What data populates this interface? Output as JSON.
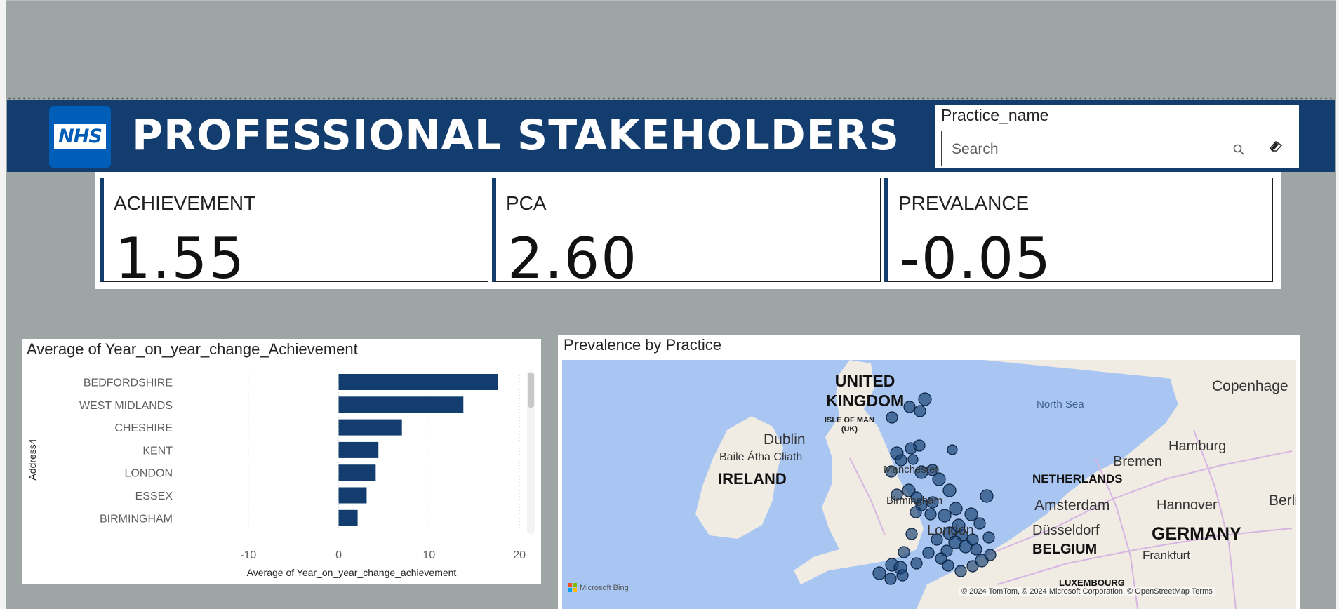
{
  "header": {
    "logo_text": "NHS",
    "title": "PROFESSIONAL STAKEHOLDERS"
  },
  "slicer": {
    "title": "Practice_name",
    "search_placeholder": "Search"
  },
  "cards": [
    {
      "label": "ACHIEVEMENT",
      "value": "1.55"
    },
    {
      "label": "PCA",
      "value": "2.60"
    },
    {
      "label": "PREVALANCE",
      "value": "-0.05"
    }
  ],
  "bar_visual": {
    "title": "Average of Year_on_year_change_Achievement"
  },
  "map_visual": {
    "title": "Prevalence by Practice",
    "labels": [
      "UNITED",
      "KINGDOM",
      "ISLE OF MAN",
      "(UK)",
      "Dublin",
      "Baile Átha Cliath",
      "IRELAND",
      "North Sea",
      "Copenhage",
      "Hamburg",
      "Bremen",
      "NETHERLANDS",
      "Amsterdam",
      "Hannover",
      "Berlin",
      "Manchester",
      "Birmingham",
      "London",
      "Düsseldorf",
      "BELGIUM",
      "GERMANY",
      "Frankfurt",
      "LUXEMBOURG"
    ],
    "attribution": "© 2024 TomTom, © 2024 Microsoft Corporation, © OpenStreetMap  Terms",
    "bing_label": "Microsoft Bing"
  },
  "colors": {
    "accent": "#123d6e",
    "nhs_blue": "#005eb8",
    "background": "#9da6a5"
  },
  "chart_data": {
    "type": "bar",
    "orientation": "horizontal",
    "title": "Average of Year_on_year_change_Achievement",
    "xlabel": "Average of Year_on_year_change_achievement",
    "ylabel": "Address4",
    "categories": [
      "BEDFORDSHIRE",
      "WEST MIDLANDS",
      "CHESHIRE",
      "KENT",
      "LONDON",
      "ESSEX",
      "BIRMINGHAM"
    ],
    "values": [
      17.6,
      13.8,
      7.0,
      4.4,
      4.1,
      3.1,
      2.1
    ],
    "xlim": [
      -12,
      21
    ],
    "xticks": [
      -10,
      0,
      10,
      20
    ],
    "grid": true,
    "color": "#123d6e"
  }
}
